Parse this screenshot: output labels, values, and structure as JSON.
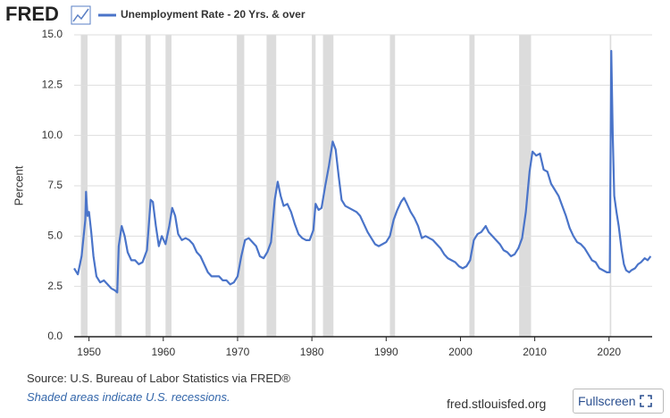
{
  "logo": "FRED",
  "source": "Source: U.S. Bureau of Labor Statistics via FRED®",
  "note": "Shaded areas indicate U.S. recessions.",
  "site": "fred.stlouisfed.org",
  "button": "Fullscreen",
  "chart_data": {
    "type": "line",
    "ylabel": "Percent",
    "x": [
      1948.0,
      1948.5,
      1949.0,
      1949.5,
      1949.6,
      1949.8,
      1950.0,
      1950.3,
      1950.6,
      1951.0,
      1951.5,
      1952.0,
      1952.5,
      1953.0,
      1953.5,
      1953.8,
      1954.0,
      1954.4,
      1954.8,
      1955.2,
      1955.7,
      1956.2,
      1956.7,
      1957.2,
      1957.8,
      1958.3,
      1958.6,
      1959.0,
      1959.4,
      1959.8,
      1960.3,
      1960.8,
      1961.2,
      1961.6,
      1962.0,
      1962.5,
      1963.0,
      1963.5,
      1964.0,
      1964.5,
      1965.0,
      1965.5,
      1966.0,
      1966.5,
      1967.0,
      1967.5,
      1968.0,
      1968.5,
      1969.0,
      1969.5,
      1970.0,
      1970.5,
      1971.0,
      1971.5,
      1972.0,
      1972.5,
      1973.0,
      1973.5,
      1974.0,
      1974.5,
      1975.0,
      1975.4,
      1975.8,
      1976.2,
      1976.7,
      1977.2,
      1977.7,
      1978.2,
      1978.7,
      1979.2,
      1979.7,
      1980.2,
      1980.5,
      1980.9,
      1981.3,
      1981.8,
      1982.3,
      1982.8,
      1983.2,
      1983.6,
      1984.0,
      1984.5,
      1985.0,
      1985.5,
      1986.0,
      1986.5,
      1987.0,
      1987.5,
      1988.0,
      1988.5,
      1989.0,
      1989.5,
      1990.0,
      1990.5,
      1991.0,
      1991.5,
      1992.0,
      1992.4,
      1992.8,
      1993.3,
      1993.8,
      1994.3,
      1994.8,
      1995.3,
      1995.8,
      1996.3,
      1996.8,
      1997.3,
      1997.8,
      1998.3,
      1998.8,
      1999.3,
      1999.8,
      2000.3,
      2000.8,
      2001.3,
      2001.8,
      2002.3,
      2002.8,
      2003.4,
      2003.8,
      2004.3,
      2004.8,
      2005.3,
      2005.8,
      2006.3,
      2006.8,
      2007.3,
      2007.8,
      2008.3,
      2008.8,
      2009.3,
      2009.7,
      2010.2,
      2010.7,
      2011.2,
      2011.7,
      2012.2,
      2012.7,
      2013.2,
      2013.7,
      2014.2,
      2014.7,
      2015.2,
      2015.7,
      2016.2,
      2016.7,
      2017.2,
      2017.7,
      2018.2,
      2018.7,
      2019.2,
      2019.7,
      2020.1,
      2020.3,
      2020.5,
      2020.7,
      2021.0,
      2021.3,
      2021.7,
      2022.0,
      2022.3,
      2022.7,
      2023.0,
      2023.5,
      2023.9,
      2024.3,
      2024.8,
      2025.2,
      2025.6
    ],
    "series": [
      {
        "name": "Unemployment Rate - 20 Yrs. & over",
        "color": "#4a74c9",
        "values": [
          3.4,
          3.1,
          4.0,
          5.8,
          7.2,
          6.0,
          6.2,
          5.2,
          4.0,
          3.0,
          2.7,
          2.8,
          2.6,
          2.4,
          2.3,
          2.2,
          4.5,
          5.5,
          5.0,
          4.2,
          3.8,
          3.8,
          3.6,
          3.7,
          4.3,
          6.8,
          6.7,
          5.5,
          4.5,
          5.0,
          4.6,
          5.5,
          6.4,
          6.0,
          5.1,
          4.8,
          4.9,
          4.8,
          4.6,
          4.2,
          4.0,
          3.6,
          3.2,
          3.0,
          3.0,
          3.0,
          2.8,
          2.8,
          2.6,
          2.7,
          3.0,
          4.0,
          4.8,
          4.9,
          4.7,
          4.5,
          4.0,
          3.9,
          4.2,
          4.7,
          6.8,
          7.7,
          7.0,
          6.5,
          6.6,
          6.2,
          5.6,
          5.1,
          4.9,
          4.8,
          4.8,
          5.3,
          6.6,
          6.3,
          6.4,
          7.5,
          8.5,
          9.7,
          9.3,
          8.0,
          6.8,
          6.5,
          6.4,
          6.3,
          6.2,
          6.0,
          5.6,
          5.2,
          4.9,
          4.6,
          4.5,
          4.6,
          4.7,
          5.0,
          5.8,
          6.3,
          6.7,
          6.9,
          6.6,
          6.2,
          5.9,
          5.5,
          4.9,
          5.0,
          4.9,
          4.8,
          4.6,
          4.4,
          4.1,
          3.9,
          3.8,
          3.7,
          3.5,
          3.4,
          3.5,
          3.8,
          4.8,
          5.1,
          5.2,
          5.5,
          5.2,
          5.0,
          4.8,
          4.6,
          4.3,
          4.2,
          4.0,
          4.1,
          4.4,
          4.9,
          6.2,
          8.2,
          9.2,
          9.0,
          9.1,
          8.3,
          8.2,
          7.6,
          7.3,
          7.0,
          6.5,
          6.0,
          5.4,
          5.0,
          4.7,
          4.6,
          4.4,
          4.1,
          3.8,
          3.7,
          3.4,
          3.3,
          3.2,
          3.2,
          14.2,
          10.0,
          7.0,
          6.2,
          5.5,
          4.3,
          3.6,
          3.3,
          3.2,
          3.3,
          3.4,
          3.6,
          3.7,
          3.9,
          3.8,
          4.0
        ]
      }
    ],
    "recessions": [
      [
        1948.9,
        1949.8
      ],
      [
        1953.5,
        1954.4
      ],
      [
        1957.6,
        1958.3
      ],
      [
        1960.3,
        1961.1
      ],
      [
        1969.9,
        1970.9
      ],
      [
        1973.9,
        1975.2
      ],
      [
        1980.0,
        1980.5
      ],
      [
        1981.5,
        1982.9
      ],
      [
        1990.5,
        1991.2
      ],
      [
        2001.2,
        2001.9
      ],
      [
        2007.9,
        2009.5
      ],
      [
        2020.1,
        2020.3
      ]
    ],
    "recession_color": "#dcdcdc",
    "xlim": [
      1948,
      2025.8
    ],
    "xticks": [
      1950,
      1960,
      1970,
      1980,
      1990,
      2000,
      2010,
      2020
    ],
    "ylim": [
      0,
      15
    ],
    "yticks": [
      {
        "value": 0,
        "label": "0.0"
      },
      2.5,
      {
        "value": 5,
        "label": "5.0"
      },
      7.5,
      {
        "value": 10,
        "label": "10.0"
      },
      12.5,
      {
        "value": 15,
        "label": "15.0"
      }
    ],
    "grid": true
  }
}
